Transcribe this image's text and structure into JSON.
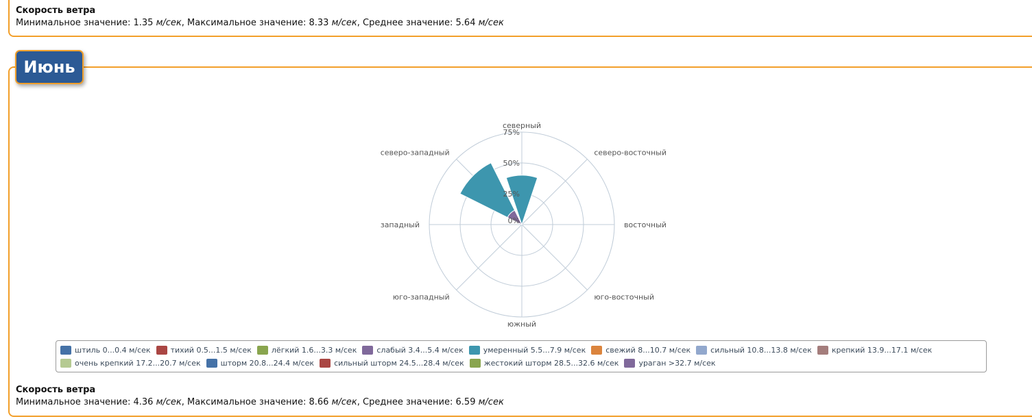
{
  "top_stats": {
    "title": "Скорость ветра",
    "min_label": "Минимальное значение: ",
    "min_value": "1.35",
    "max_label": ", Максимальное значение: ",
    "max_value": "8.33",
    "avg_label": ", Среднее значение: ",
    "avg_value": "5.64",
    "unit": "м/сек"
  },
  "month": {
    "title": "Июнь"
  },
  "colors": {
    "accent_border": "#f29f2a",
    "tab_bg": "#2c5a95",
    "grid": "#c0ccd8",
    "label": "#555555"
  },
  "chart_data": {
    "type": "windrose",
    "directions": [
      "северный",
      "северо-восточный",
      "восточный",
      "юго-восточный",
      "южный",
      "юго-западный",
      "западный",
      "северо-западный"
    ],
    "radial_ticks": [
      "0%",
      "25%",
      "50%",
      "75%"
    ],
    "rmax": 75,
    "series": [
      {
        "name": "штиль 0...0.4 м/сек",
        "color": "#4572a7",
        "values": [
          0,
          0,
          0,
          0,
          0,
          0,
          0,
          0
        ]
      },
      {
        "name": "тихий 0.5...1.5 м/сек",
        "color": "#aa4643",
        "values": [
          0,
          0,
          0,
          0,
          0,
          0,
          0,
          0
        ]
      },
      {
        "name": "лёгкий 1.6...3.3 м/сек",
        "color": "#89a54e",
        "values": [
          0,
          0,
          0,
          0,
          0,
          0,
          0,
          0
        ]
      },
      {
        "name": "слабый 3.4...5.4 м/сек",
        "color": "#80699b",
        "values": [
          0,
          0,
          0,
          0,
          0,
          0,
          0,
          13
        ]
      },
      {
        "name": "умеренный 5.5...7.9 м/сек",
        "color": "#3d96ae",
        "values": [
          40,
          0,
          0,
          0,
          0,
          0,
          0,
          43
        ]
      },
      {
        "name": "свежий 8...10.7 м/сек",
        "color": "#db843d",
        "values": [
          0,
          0,
          0,
          0,
          0,
          0,
          0,
          0
        ]
      },
      {
        "name": "сильный 10.8...13.8 м/сек",
        "color": "#92a8cd",
        "values": [
          0,
          0,
          0,
          0,
          0,
          0,
          0,
          0
        ]
      },
      {
        "name": "крепкий 13.9...17.1 м/сек",
        "color": "#a47d7c",
        "values": [
          0,
          0,
          0,
          0,
          0,
          0,
          0,
          0
        ]
      },
      {
        "name": "очень крепкий 17.2...20.7 м/сек",
        "color": "#b5ca92",
        "values": [
          0,
          0,
          0,
          0,
          0,
          0,
          0,
          0
        ]
      },
      {
        "name": "шторм 20.8...24.4 м/сек",
        "color": "#4572a7",
        "values": [
          0,
          0,
          0,
          0,
          0,
          0,
          0,
          0
        ]
      },
      {
        "name": "сильный шторм 24.5...28.4 м/сек",
        "color": "#aa4643",
        "values": [
          0,
          0,
          0,
          0,
          0,
          0,
          0,
          0
        ]
      },
      {
        "name": "жестокий шторм 28.5...32.6 м/сек",
        "color": "#89a54e",
        "values": [
          0,
          0,
          0,
          0,
          0,
          0,
          0,
          0
        ]
      },
      {
        "name": "ураган >32.7 м/сек",
        "color": "#80699b",
        "values": [
          0,
          0,
          0,
          0,
          0,
          0,
          0,
          0
        ]
      }
    ],
    "legend_position": "bottom",
    "grid": true
  },
  "bottom_stats": {
    "title": "Скорость ветра",
    "min_label": "Минимальное значение: ",
    "min_value": "4.36",
    "max_label": ", Максимальное значение: ",
    "max_value": "8.66",
    "avg_label": ", Среднее значение: ",
    "avg_value": "6.59",
    "unit": "м/сек"
  }
}
